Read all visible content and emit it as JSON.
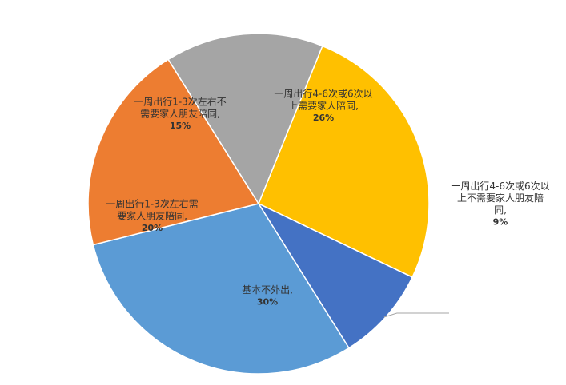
{
  "chart_data": {
    "type": "pie",
    "title": "",
    "slices": [
      {
        "name": "一周出行4-6次或6次以上需要家人陪同",
        "label_lines": [
          "一周出行4-6次或6次以",
          "上需要家人陪同,"
        ],
        "percent_label": "26%",
        "value": 26,
        "color": "#FFC000"
      },
      {
        "name": "一周出行4-6次或6次以上不需要家人朋友陪同",
        "label_lines": [
          "一周出行4-6次或6次以",
          "上不需要家人朋友陪",
          "同,"
        ],
        "percent_label": "9%",
        "value": 9,
        "color": "#4472C4"
      },
      {
        "name": "基本不外出",
        "label_lines": [
          "基本不外出,"
        ],
        "percent_label": "30%",
        "value": 30,
        "color": "#5B9BD5"
      },
      {
        "name": "一周出行1-3次左右需要家人朋友陪同",
        "label_lines": [
          "一周出行1-3次左右需",
          "要家人朋友陪同,"
        ],
        "percent_label": "20%",
        "value": 20,
        "color": "#ED7D31"
      },
      {
        "name": "一周出行1-3次左右不需要家人朋友陪同",
        "label_lines": [
          "一周出行1-3次左右不",
          "需要家人朋友陪同,"
        ],
        "percent_label": "15%",
        "value": 15,
        "color": "#A5A5A5"
      }
    ]
  }
}
